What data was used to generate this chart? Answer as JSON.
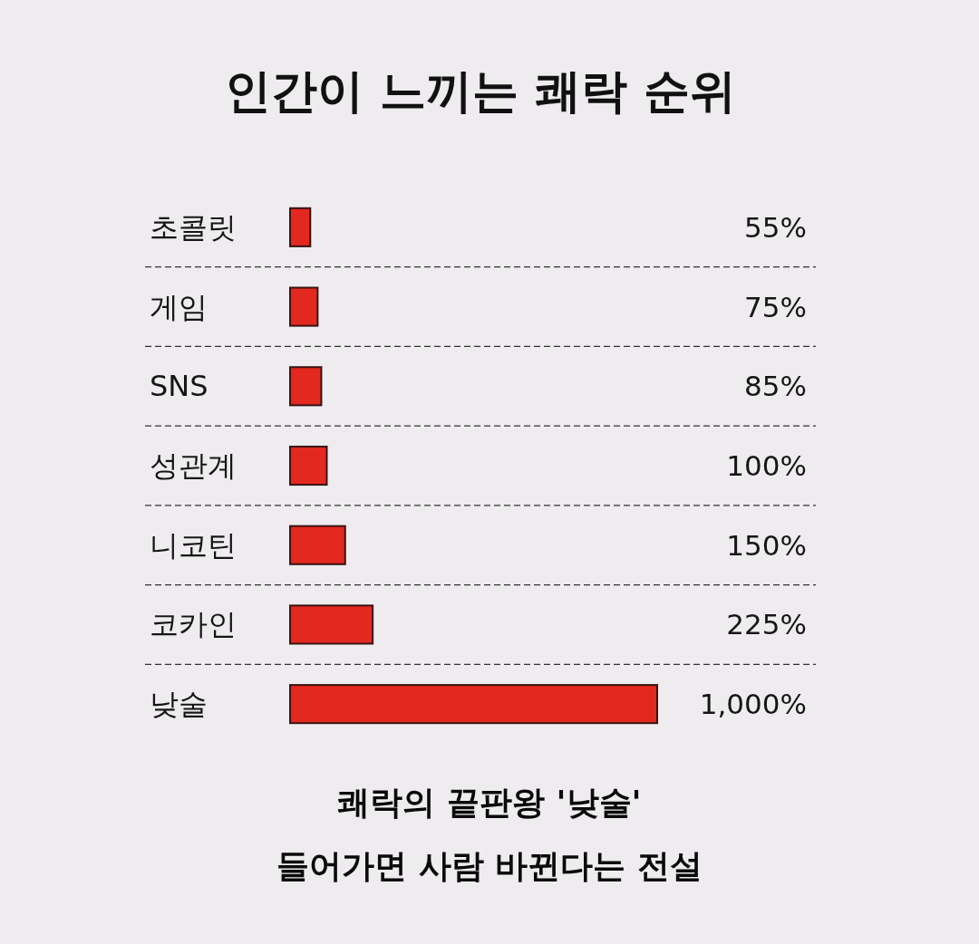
{
  "chart_data": {
    "type": "bar",
    "orientation": "horizontal",
    "title": "인간이 느끼는 쾌락 순위",
    "categories": [
      "초콜릿",
      "게임",
      "SNS",
      "성관계",
      "니코틴",
      "코카인",
      "낮술"
    ],
    "values": [
      55,
      75,
      85,
      100,
      150,
      225,
      1000
    ],
    "value_labels": [
      "55%",
      "75%",
      "85%",
      "100%",
      "150%",
      "225%",
      "1,000%"
    ],
    "color": "#e3281f",
    "grid": "y",
    "annotations": [
      "쾌락의 끝판왕 '낮술'",
      "들어가면 사람 바뀐다는 전설"
    ]
  }
}
